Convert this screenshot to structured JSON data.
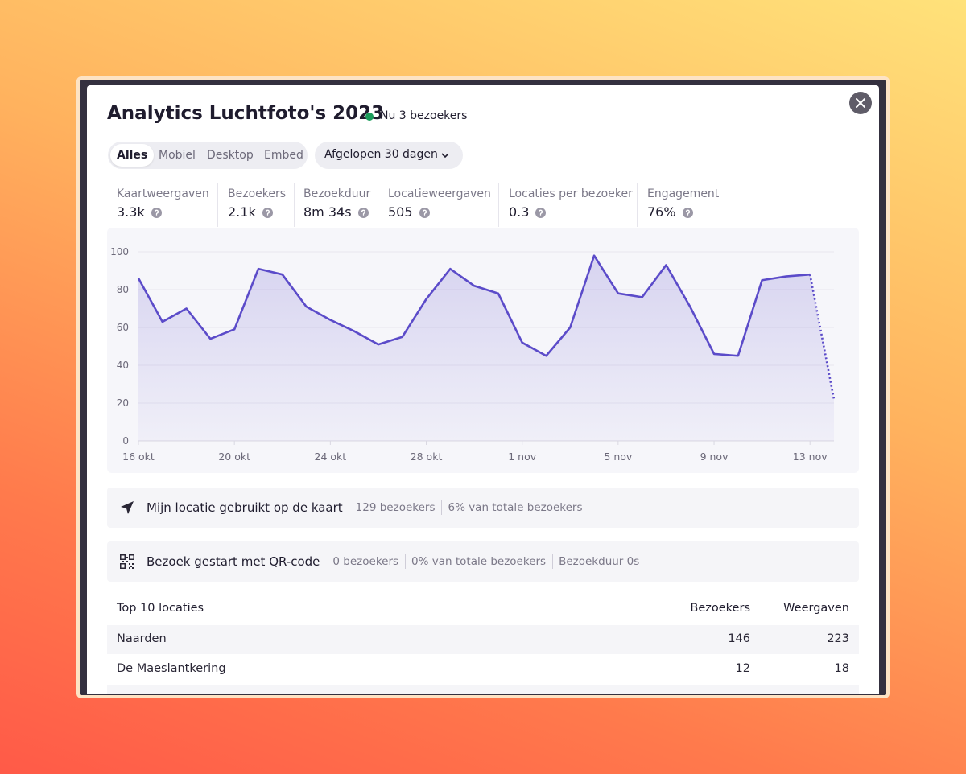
{
  "header": {
    "title": "Analytics Luchtfoto's 2023",
    "live": "Nu 3 bezoekers"
  },
  "tabs": [
    "Alles",
    "Mobiel",
    "Desktop",
    "Embed"
  ],
  "period": "Afgelopen 30 dagen",
  "stats": [
    {
      "label": "Kaartweergaven",
      "value": "3.3k"
    },
    {
      "label": "Bezoekers",
      "value": "2.1k"
    },
    {
      "label": "Bezoekduur",
      "value": "8m 34s"
    },
    {
      "label": "Locatieweergaven",
      "value": "505"
    },
    {
      "label": "Locaties per bezoeker",
      "value": "0.3"
    },
    {
      "label": "Engagement",
      "value": "76%"
    }
  ],
  "chart_data": {
    "type": "line",
    "categories": [
      "16 okt",
      null,
      null,
      null,
      "20 okt",
      null,
      null,
      null,
      "24 okt",
      null,
      null,
      null,
      "28 okt",
      null,
      null,
      null,
      "1 nov",
      null,
      null,
      null,
      "5 nov",
      null,
      null,
      null,
      "9 nov",
      null,
      null,
      null,
      "13 nov",
      null
    ],
    "series": [
      {
        "name": "Bezoekers",
        "color": "#5b4bc9",
        "values": [
          86,
          63,
          70,
          54,
          59,
          91,
          88,
          71,
          64,
          58,
          51,
          55,
          75,
          91,
          82,
          78,
          52,
          45,
          60,
          98,
          78,
          76,
          93,
          71,
          46,
          45,
          85,
          87,
          88,
          22
        ]
      }
    ],
    "ylim": [
      0,
      100
    ],
    "yticks": [
      0,
      20,
      40,
      60,
      80,
      100
    ],
    "grid": true
  },
  "banners": [
    {
      "text": "Mijn locatie gebruikt op de kaart",
      "facts": [
        "129 bezoekers",
        "6% van totale bezoekers"
      ]
    },
    {
      "text": "Bezoek gestart met QR-code",
      "facts": [
        "0 bezoekers",
        "0% van totale bezoekers",
        "Bezoekduur 0s"
      ]
    }
  ],
  "table": {
    "header": [
      "Top 10 locaties",
      "Bezoekers",
      "Weergaven"
    ],
    "rows": [
      [
        "Naarden",
        "146",
        "223"
      ],
      [
        "De Maeslantkering",
        "12",
        "18"
      ]
    ]
  }
}
